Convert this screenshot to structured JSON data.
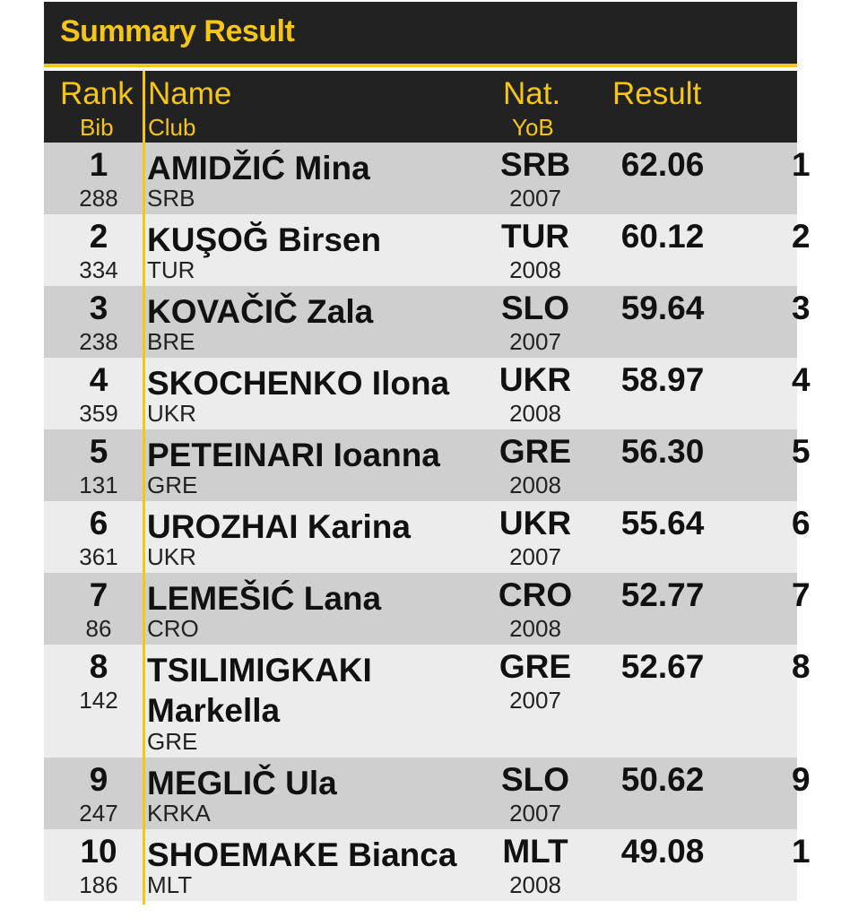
{
  "title": "Summary Result",
  "header": {
    "rank": "Rank",
    "bib": "Bib",
    "name": "Name",
    "club": "Club",
    "nat": "Nat.",
    "yob": "YoB",
    "result": "Result"
  },
  "colors": {
    "accent": "#f5c518",
    "header_bg": "#222222",
    "row_odd": "#cfcfcf",
    "row_even": "#ececec"
  },
  "rows": [
    {
      "rank": "1",
      "bib": "288",
      "name": "AMIDŽIĆ Mina",
      "club": "SRB",
      "nat": "SRB",
      "yob": "2007",
      "result": "62.06",
      "extra": "1"
    },
    {
      "rank": "2",
      "bib": "334",
      "name": "KUŞOĞ Birsen",
      "club": "TUR",
      "nat": "TUR",
      "yob": "2008",
      "result": "60.12",
      "extra": "2"
    },
    {
      "rank": "3",
      "bib": "238",
      "name": "KOVAČIČ Zala",
      "club": "BRE",
      "nat": "SLO",
      "yob": "2007",
      "result": "59.64",
      "extra": "3"
    },
    {
      "rank": "4",
      "bib": "359",
      "name": "SKOCHENKO Ilona",
      "club": "UKR",
      "nat": "UKR",
      "yob": "2008",
      "result": "58.97",
      "extra": "4"
    },
    {
      "rank": "5",
      "bib": "131",
      "name": "PETEINARI Ioanna",
      "club": "GRE",
      "nat": "GRE",
      "yob": "2008",
      "result": "56.30",
      "extra": "5"
    },
    {
      "rank": "6",
      "bib": "361",
      "name": "UROZHAI Karina",
      "club": "UKR",
      "nat": "UKR",
      "yob": "2007",
      "result": "55.64",
      "extra": "6"
    },
    {
      "rank": "7",
      "bib": "86",
      "name": "LEMEŠIĆ Lana",
      "club": "CRO",
      "nat": "CRO",
      "yob": "2008",
      "result": "52.77",
      "extra": "7"
    },
    {
      "rank": "8",
      "bib": "142",
      "name": "TSILIMIGKAKI Markella",
      "club": "GRE",
      "nat": "GRE",
      "yob": "2007",
      "result": "52.67",
      "extra": "8"
    },
    {
      "rank": "9",
      "bib": "247",
      "name": "MEGLIČ Ula",
      "club": "KRKA",
      "nat": "SLO",
      "yob": "2007",
      "result": "50.62",
      "extra": "9"
    },
    {
      "rank": "10",
      "bib": "186",
      "name": "SHOEMAKE Bianca",
      "club": "MLT",
      "nat": "MLT",
      "yob": "2008",
      "result": "49.08",
      "extra": "1"
    }
  ]
}
